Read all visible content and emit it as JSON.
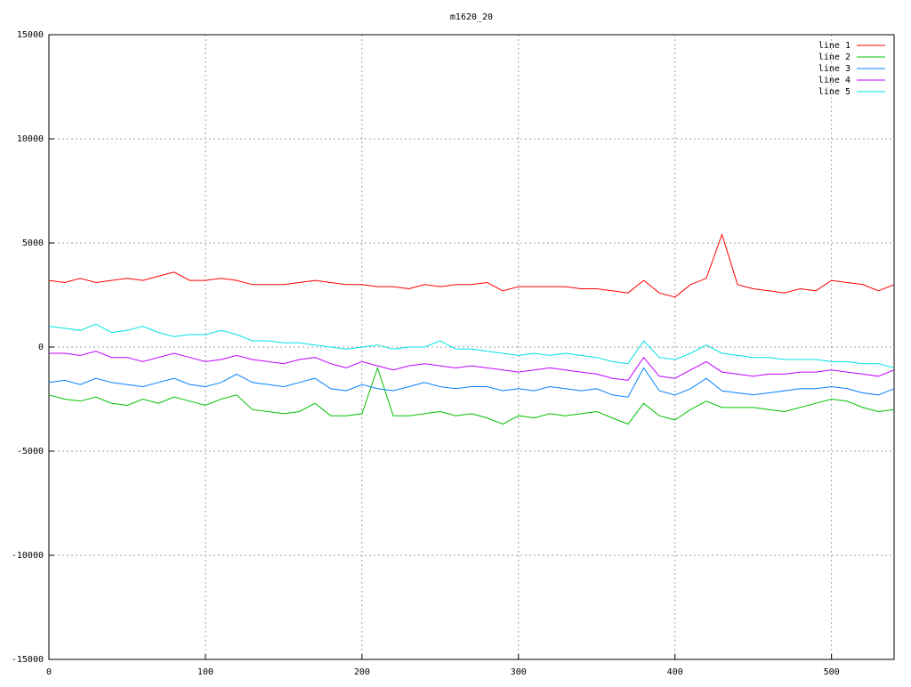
{
  "chart_data": {
    "type": "line",
    "title": "m1620_20",
    "x": [
      0,
      10,
      20,
      30,
      40,
      50,
      60,
      70,
      80,
      90,
      100,
      110,
      120,
      130,
      140,
      150,
      160,
      170,
      180,
      190,
      200,
      210,
      220,
      230,
      240,
      250,
      260,
      270,
      280,
      290,
      300,
      310,
      320,
      330,
      340,
      350,
      360,
      370,
      380,
      390,
      400,
      410,
      420,
      430,
      440,
      450,
      460,
      470,
      480,
      490,
      500,
      510,
      520,
      530,
      540
    ],
    "series": [
      {
        "name": "line 1",
        "color": "#ff0000",
        "values": [
          3200,
          3100,
          3300,
          3100,
          3200,
          3300,
          3200,
          3400,
          3600,
          3200,
          3200,
          3300,
          3200,
          3000,
          3000,
          3000,
          3100,
          3200,
          3100,
          3000,
          3000,
          2900,
          2900,
          2800,
          3000,
          2900,
          3000,
          3000,
          3100,
          2700,
          2900,
          2900,
          2900,
          2900,
          2800,
          2800,
          2700,
          2600,
          3200,
          2600,
          2400,
          3000,
          3300,
          5400,
          3000,
          2800,
          2700,
          2600,
          2800,
          2700,
          3200,
          3100,
          3000,
          2700,
          3000
        ]
      },
      {
        "name": "line 2",
        "color": "#00c000",
        "values": [
          -2300,
          -2500,
          -2600,
          -2400,
          -2700,
          -2800,
          -2500,
          -2700,
          -2400,
          -2600,
          -2800,
          -2500,
          -2300,
          -3000,
          -3100,
          -3200,
          -3100,
          -2700,
          -3300,
          -3300,
          -3200,
          -1000,
          -3300,
          -3300,
          -3200,
          -3100,
          -3300,
          -3200,
          -3400,
          -3700,
          -3300,
          -3400,
          -3200,
          -3300,
          -3200,
          -3100,
          -3400,
          -3700,
          -2700,
          -3300,
          -3500,
          -3000,
          -2600,
          -2900,
          -2900,
          -2900,
          -3000,
          -3100,
          -2900,
          -2700,
          -2500,
          -2600,
          -2900,
          -3100,
          -3000
        ]
      },
      {
        "name": "line 3",
        "color": "#0080ff",
        "values": [
          -1700,
          -1600,
          -1800,
          -1500,
          -1700,
          -1800,
          -1900,
          -1700,
          -1500,
          -1800,
          -1900,
          -1700,
          -1300,
          -1700,
          -1800,
          -1900,
          -1700,
          -1500,
          -2000,
          -2100,
          -1800,
          -2000,
          -2100,
          -1900,
          -1700,
          -1900,
          -2000,
          -1900,
          -1900,
          -2100,
          -2000,
          -2100,
          -1900,
          -2000,
          -2100,
          -2000,
          -2300,
          -2400,
          -1000,
          -2100,
          -2300,
          -2000,
          -1500,
          -2100,
          -2200,
          -2300,
          -2200,
          -2100,
          -2000,
          -2000,
          -1900,
          -2000,
          -2200,
          -2300,
          -2000
        ]
      },
      {
        "name": "line 4",
        "color": "#c000ff",
        "values": [
          -300,
          -300,
          -400,
          -200,
          -500,
          -500,
          -700,
          -500,
          -300,
          -500,
          -700,
          -600,
          -400,
          -600,
          -700,
          -800,
          -600,
          -500,
          -800,
          -1000,
          -700,
          -900,
          -1100,
          -900,
          -800,
          -900,
          -1000,
          -900,
          -1000,
          -1100,
          -1200,
          -1100,
          -1000,
          -1100,
          -1200,
          -1300,
          -1500,
          -1600,
          -500,
          -1400,
          -1500,
          -1100,
          -700,
          -1200,
          -1300,
          -1400,
          -1300,
          -1300,
          -1200,
          -1200,
          -1100,
          -1200,
          -1300,
          -1400,
          -1100
        ]
      },
      {
        "name": "line 5",
        "color": "#00e0e0",
        "values": [
          1000,
          900,
          800,
          1100,
          700,
          800,
          1000,
          700,
          500,
          600,
          600,
          800,
          600,
          300,
          300,
          200,
          200,
          100,
          0,
          -100,
          0,
          100,
          -100,
          0,
          0,
          300,
          -100,
          -100,
          -200,
          -300,
          -400,
          -300,
          -400,
          -300,
          -400,
          -500,
          -700,
          -800,
          300,
          -500,
          -600,
          -300,
          100,
          -300,
          -400,
          -500,
          -500,
          -600,
          -600,
          -600,
          -700,
          -700,
          -800,
          -800,
          -1000
        ]
      }
    ],
    "xlim": [
      0,
      540
    ],
    "xticks": [
      0,
      100,
      200,
      300,
      400,
      500
    ],
    "ylim": [
      -15000,
      15000
    ],
    "yticks": [
      -15000,
      -10000,
      -5000,
      0,
      5000,
      10000,
      15000
    ],
    "grid": true,
    "legend": "top-right"
  }
}
